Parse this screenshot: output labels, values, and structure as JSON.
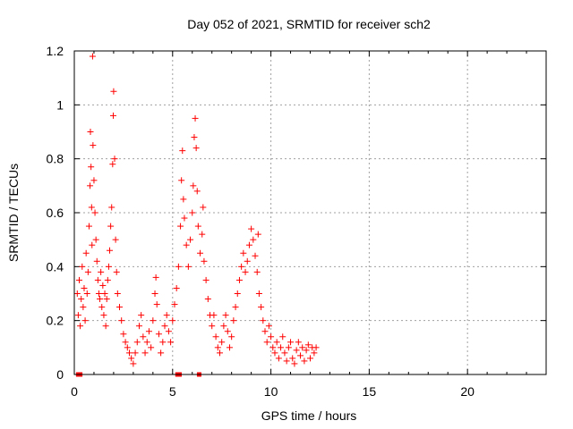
{
  "chart_data": {
    "type": "scatter",
    "title": "Day 052 of 2021, SRMTID for receiver sch2",
    "xlabel": "GPS time / hours",
    "ylabel": "SRMTID / TECUs",
    "xlim": [
      0,
      24
    ],
    "ylim": [
      0,
      1.2
    ],
    "xticks": [
      0,
      5,
      10,
      15,
      20
    ],
    "xtick_labels": [
      "0",
      "5",
      "10",
      "15",
      "20"
    ],
    "yticks": [
      0,
      0.2,
      0.4,
      0.6,
      0.8,
      1.0,
      1.2
    ],
    "ytick_labels": [
      "0",
      "0.2",
      "0.4",
      "0.6",
      "0.8",
      "1",
      "1.2"
    ],
    "grid": true,
    "marker": "plus",
    "color": "#ff0000",
    "series": [
      {
        "name": "SRMTID",
        "points": [
          [
            0.15,
            0.3
          ],
          [
            0.2,
            0.22
          ],
          [
            0.25,
            0.35
          ],
          [
            0.3,
            0.18
          ],
          [
            0.35,
            0.28
          ],
          [
            0.4,
            0.4
          ],
          [
            0.45,
            0.25
          ],
          [
            0.5,
            0.32
          ],
          [
            0.55,
            0.2
          ],
          [
            0.6,
            0.45
          ],
          [
            0.65,
            0.3
          ],
          [
            0.7,
            0.38
          ],
          [
            0.75,
            0.55
          ],
          [
            0.8,
            0.7
          ],
          [
            0.82,
            0.9
          ],
          [
            0.85,
            0.77
          ],
          [
            0.88,
            0.62
          ],
          [
            0.9,
            0.48
          ],
          [
            0.93,
            1.18
          ],
          [
            0.95,
            0.85
          ],
          [
            1.0,
            0.72
          ],
          [
            1.05,
            0.6
          ],
          [
            1.1,
            0.5
          ],
          [
            1.15,
            0.42
          ],
          [
            1.2,
            0.35
          ],
          [
            1.25,
            0.3
          ],
          [
            1.3,
            0.28
          ],
          [
            1.35,
            0.38
          ],
          [
            1.4,
            0.25
          ],
          [
            1.45,
            0.33
          ],
          [
            1.5,
            0.22
          ],
          [
            1.55,
            0.3
          ],
          [
            1.6,
            0.18
          ],
          [
            1.65,
            0.28
          ],
          [
            1.7,
            0.35
          ],
          [
            1.75,
            0.4
          ],
          [
            1.8,
            0.46
          ],
          [
            1.85,
            0.55
          ],
          [
            1.9,
            0.62
          ],
          [
            1.95,
            0.78
          ],
          [
            1.98,
            0.96
          ],
          [
            2.0,
            1.05
          ],
          [
            2.05,
            0.8
          ],
          [
            2.1,
            0.5
          ],
          [
            2.15,
            0.38
          ],
          [
            2.2,
            0.3
          ],
          [
            2.3,
            0.25
          ],
          [
            2.4,
            0.2
          ],
          [
            2.5,
            0.15
          ],
          [
            2.6,
            0.12
          ],
          [
            2.7,
            0.1
          ],
          [
            2.8,
            0.08
          ],
          [
            2.9,
            0.06
          ],
          [
            3.0,
            0.04
          ],
          [
            3.1,
            0.08
          ],
          [
            3.2,
            0.12
          ],
          [
            3.3,
            0.18
          ],
          [
            3.4,
            0.22
          ],
          [
            3.5,
            0.14
          ],
          [
            3.6,
            0.08
          ],
          [
            3.7,
            0.12
          ],
          [
            3.8,
            0.16
          ],
          [
            3.9,
            0.1
          ],
          [
            4.0,
            0.2
          ],
          [
            4.1,
            0.3
          ],
          [
            4.15,
            0.36
          ],
          [
            4.2,
            0.26
          ],
          [
            4.3,
            0.15
          ],
          [
            4.4,
            0.08
          ],
          [
            4.5,
            0.12
          ],
          [
            4.6,
            0.18
          ],
          [
            4.7,
            0.22
          ],
          [
            4.8,
            0.16
          ],
          [
            4.9,
            0.12
          ],
          [
            5.0,
            0.2
          ],
          [
            5.1,
            0.26
          ],
          [
            5.2,
            0.32
          ],
          [
            5.3,
            0.4
          ],
          [
            5.4,
            0.55
          ],
          [
            5.45,
            0.72
          ],
          [
            5.5,
            0.83
          ],
          [
            5.55,
            0.65
          ],
          [
            5.6,
            0.58
          ],
          [
            5.7,
            0.48
          ],
          [
            5.8,
            0.4
          ],
          [
            5.9,
            0.5
          ],
          [
            6.0,
            0.6
          ],
          [
            6.05,
            0.7
          ],
          [
            6.1,
            0.88
          ],
          [
            6.15,
            0.95
          ],
          [
            6.2,
            0.84
          ],
          [
            6.25,
            0.68
          ],
          [
            6.3,
            0.55
          ],
          [
            6.4,
            0.45
          ],
          [
            6.5,
            0.52
          ],
          [
            6.55,
            0.62
          ],
          [
            6.6,
            0.42
          ],
          [
            6.7,
            0.35
          ],
          [
            6.8,
            0.28
          ],
          [
            6.9,
            0.22
          ],
          [
            7.0,
            0.18
          ],
          [
            7.1,
            0.22
          ],
          [
            7.2,
            0.14
          ],
          [
            7.3,
            0.1
          ],
          [
            7.4,
            0.08
          ],
          [
            7.5,
            0.12
          ],
          [
            7.6,
            0.18
          ],
          [
            7.7,
            0.22
          ],
          [
            7.8,
            0.16
          ],
          [
            7.9,
            0.1
          ],
          [
            8.0,
            0.14
          ],
          [
            8.1,
            0.2
          ],
          [
            8.2,
            0.25
          ],
          [
            8.3,
            0.3
          ],
          [
            8.4,
            0.35
          ],
          [
            8.5,
            0.4
          ],
          [
            8.6,
            0.45
          ],
          [
            8.7,
            0.38
          ],
          [
            8.8,
            0.42
          ],
          [
            8.9,
            0.48
          ],
          [
            9.0,
            0.54
          ],
          [
            9.1,
            0.5
          ],
          [
            9.2,
            0.44
          ],
          [
            9.3,
            0.38
          ],
          [
            9.35,
            0.52
          ],
          [
            9.4,
            0.3
          ],
          [
            9.5,
            0.25
          ],
          [
            9.6,
            0.2
          ],
          [
            9.7,
            0.16
          ],
          [
            9.8,
            0.12
          ],
          [
            9.9,
            0.18
          ],
          [
            10.0,
            0.14
          ],
          [
            10.1,
            0.1
          ],
          [
            10.2,
            0.08
          ],
          [
            10.3,
            0.12
          ],
          [
            10.4,
            0.06
          ],
          [
            10.5,
            0.1
          ],
          [
            10.6,
            0.14
          ],
          [
            10.7,
            0.08
          ],
          [
            10.8,
            0.05
          ],
          [
            10.9,
            0.1
          ],
          [
            11.0,
            0.12
          ],
          [
            11.1,
            0.06
          ],
          [
            11.2,
            0.04
          ],
          [
            11.3,
            0.09
          ],
          [
            11.4,
            0.12
          ],
          [
            11.5,
            0.07
          ],
          [
            11.6,
            0.1
          ],
          [
            11.7,
            0.05
          ],
          [
            11.8,
            0.09
          ],
          [
            11.9,
            0.11
          ],
          [
            12.0,
            0.06
          ],
          [
            12.1,
            0.1
          ],
          [
            12.2,
            0.08
          ],
          [
            12.3,
            0.1
          ]
        ]
      }
    ],
    "zero_points": [
      0.2,
      0.3,
      5.25,
      5.35,
      6.35
    ]
  }
}
